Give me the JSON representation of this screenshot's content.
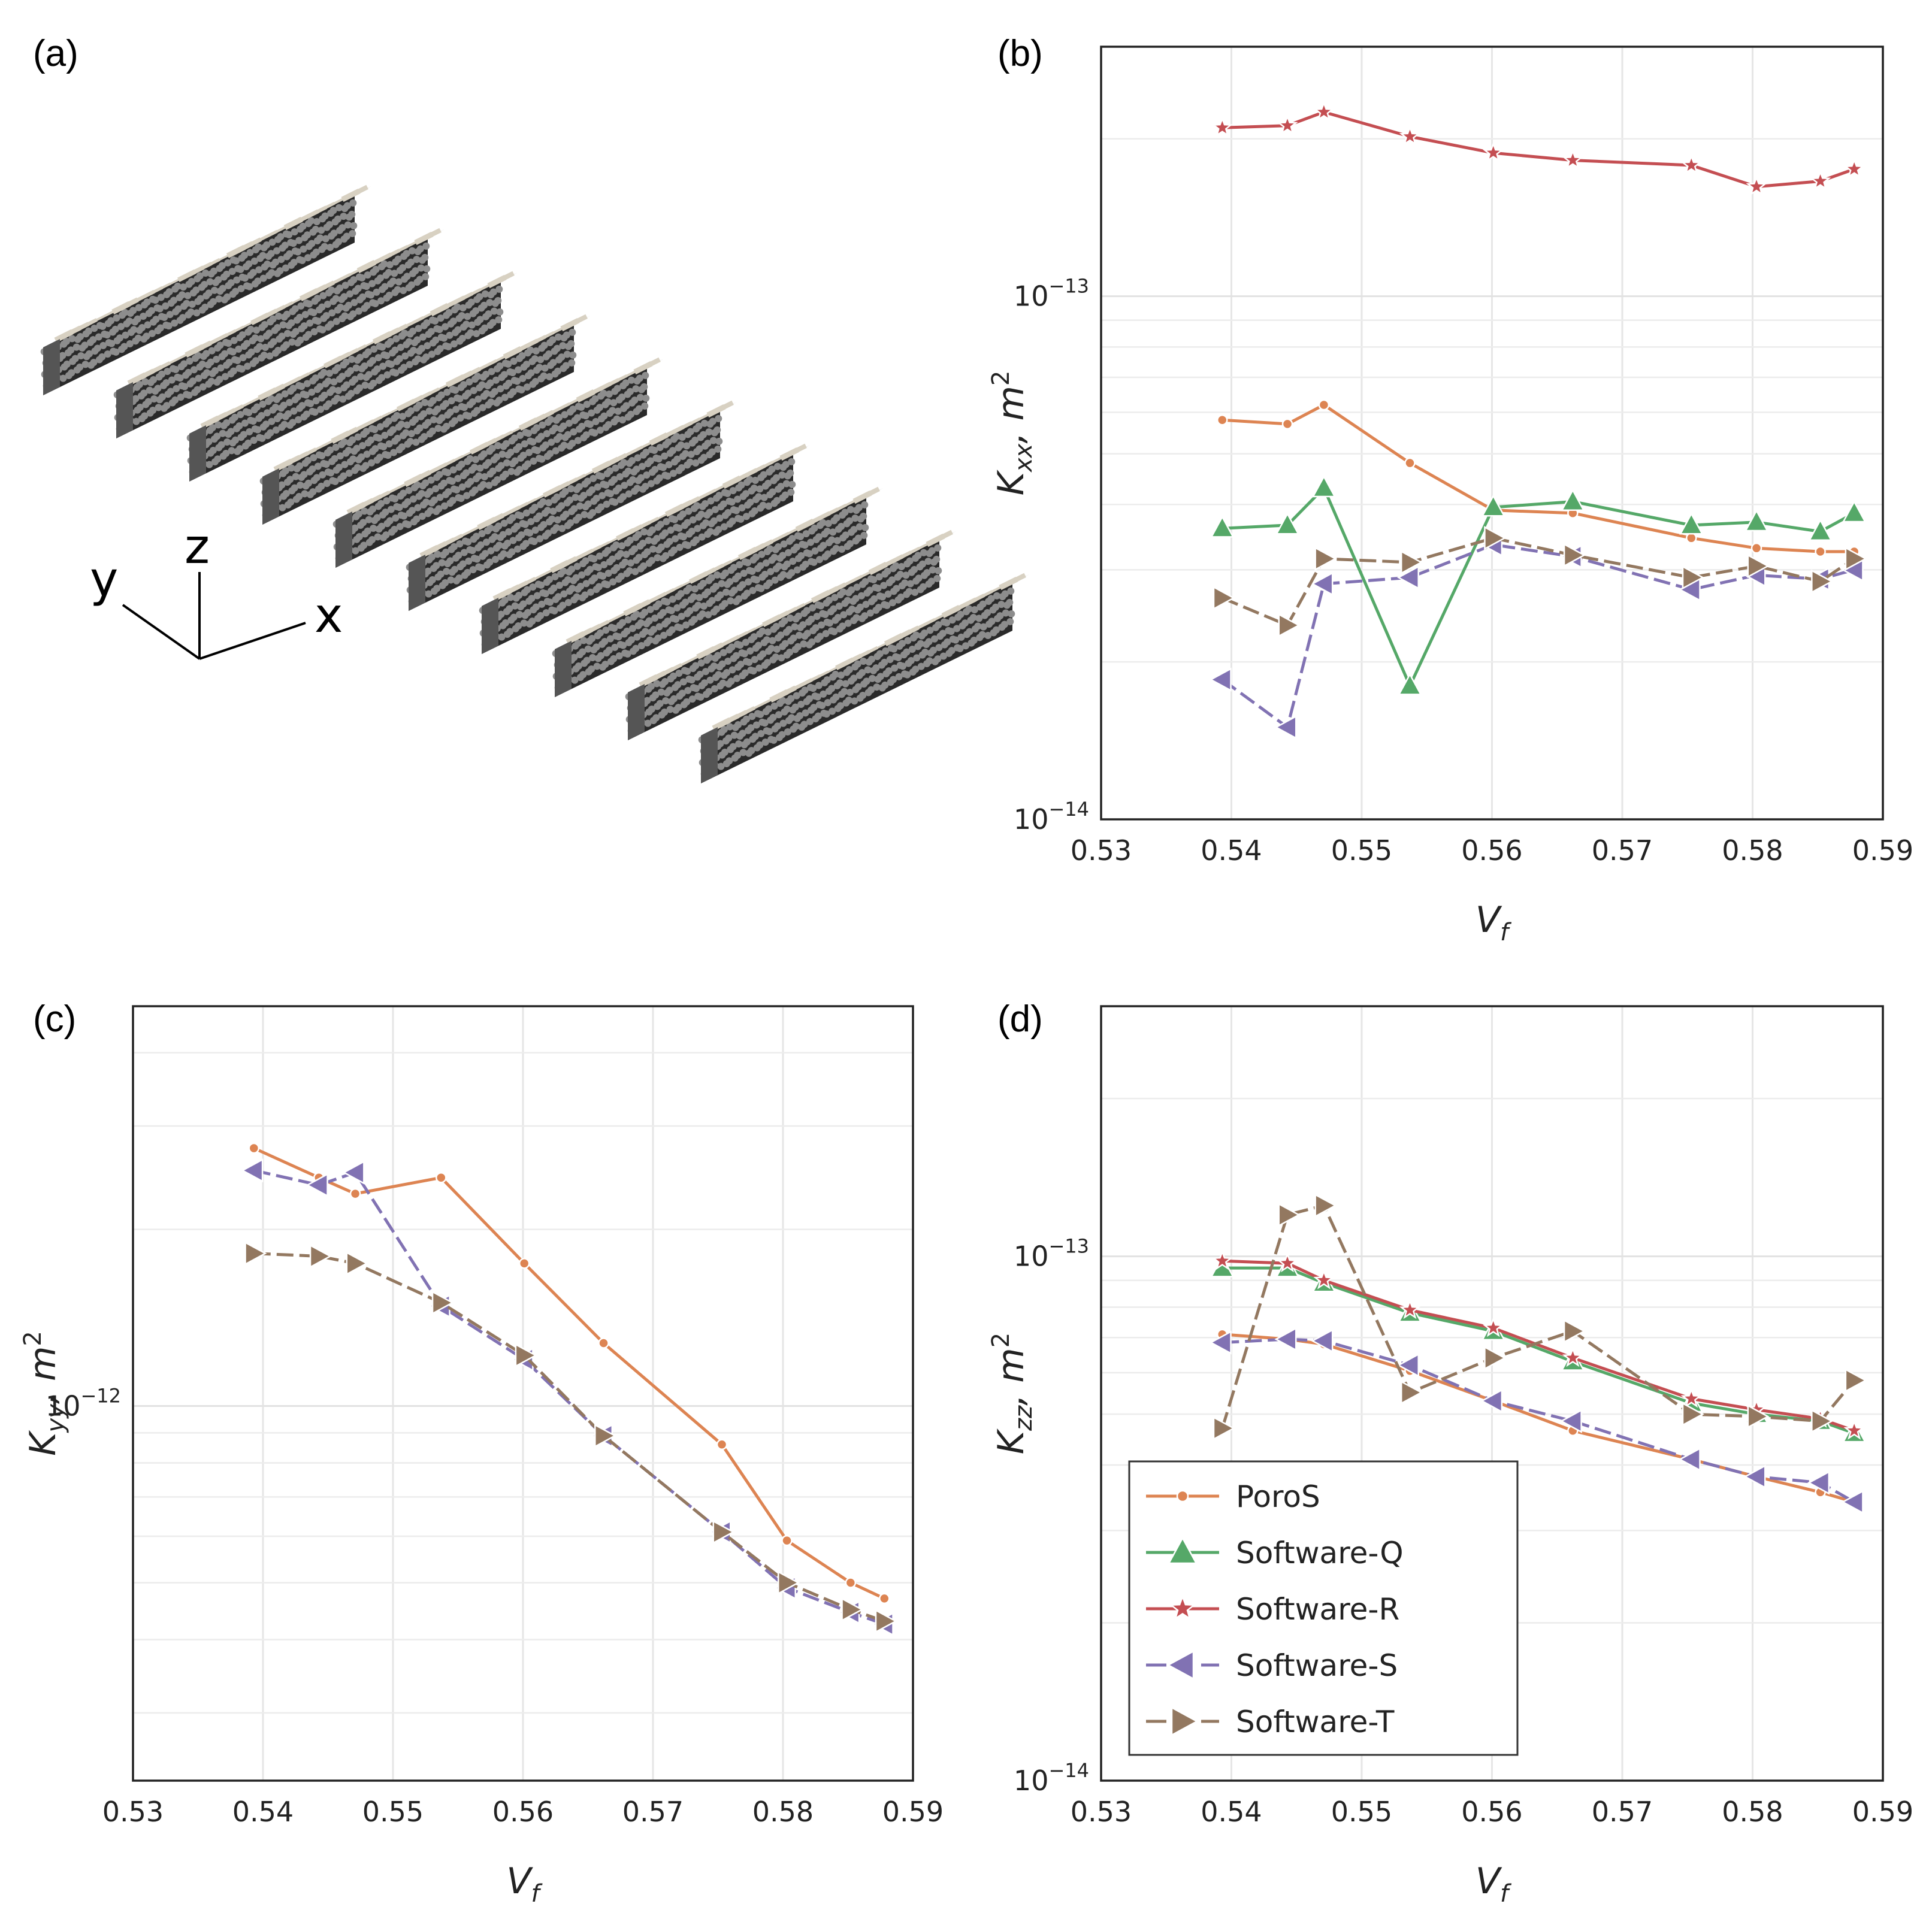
{
  "panels": {
    "a": "(a)",
    "b": "(b)",
    "c": "(c)",
    "d": "(d)"
  },
  "axes3d": {
    "x": "x",
    "y": "y",
    "z": "z"
  },
  "series_styles": [
    {
      "name": "PoroS",
      "color": "#dd8452",
      "marker": "circle",
      "dash": ""
    },
    {
      "name": "Software-Q",
      "color": "#55a868",
      "marker": "triangle-up",
      "dash": ""
    },
    {
      "name": "Software-R",
      "color": "#c44e52",
      "marker": "star",
      "dash": ""
    },
    {
      "name": "Software-S",
      "color": "#8172b3",
      "marker": "triangle-left",
      "dash": "28,10"
    },
    {
      "name": "Software-T",
      "color": "#937860",
      "marker": "triangle-right",
      "dash": "28,10"
    }
  ],
  "chart_data": [
    {
      "panel": "(b)",
      "type": "line",
      "xlabel": "V_f",
      "ylabel": "K_xx, m^2",
      "xlim": [
        0.53,
        0.59
      ],
      "ylim": [
        1e-14,
        3e-13
      ],
      "yscale": "log",
      "grid": true,
      "xticks": [
        "0.53",
        "0.54",
        "0.55",
        "0.56",
        "0.57",
        "0.58",
        "0.59"
      ],
      "yticks": [
        {
          "value": 1e-14,
          "label": "10^-14"
        },
        {
          "value": 1e-13,
          "label": "10^-13"
        }
      ],
      "x": [
        0.5393,
        0.5443,
        0.5471,
        0.5537,
        0.5601,
        0.5662,
        0.5753,
        0.5803,
        0.5852,
        0.5878
      ],
      "series": [
        {
          "name": "PoroS",
          "values": [
            5.8e-14,
            5.7e-14,
            6.2e-14,
            4.8e-14,
            3.9e-14,
            3.85e-14,
            3.45e-14,
            3.3e-14,
            3.25e-14,
            3.25e-14
          ]
        },
        {
          "name": "Software-Q",
          "values": [
            3.6e-14,
            3.65e-14,
            4.3e-14,
            1.8e-14,
            3.95e-14,
            4.05e-14,
            3.65e-14,
            3.7e-14,
            3.55e-14,
            3.85e-14
          ]
        },
        {
          "name": "Software-R",
          "values": [
            2.1e-13,
            2.12e-13,
            2.25e-13,
            2.02e-13,
            1.88e-13,
            1.82e-13,
            1.78e-13,
            1.62e-13,
            1.66e-13,
            1.75e-13
          ]
        },
        {
          "name": "Software-S",
          "values": [
            1.85e-14,
            1.5e-14,
            2.82e-14,
            2.9e-14,
            3.35e-14,
            3.18e-14,
            2.75e-14,
            2.93e-14,
            2.88e-14,
            3e-14
          ]
        },
        {
          "name": "Software-T",
          "values": [
            2.65e-14,
            2.35e-14,
            3.15e-14,
            3.1e-14,
            3.45e-14,
            3.2e-14,
            2.9e-14,
            3.05e-14,
            2.85e-14,
            3.15e-14
          ]
        }
      ]
    },
    {
      "panel": "(c)",
      "type": "line",
      "xlabel": "V_f",
      "ylabel": "K_yy, m^2",
      "xlim": [
        0.53,
        0.59
      ],
      "ylim": [
        2.3e-13,
        4.8e-12
      ],
      "yscale": "log",
      "grid": true,
      "xticks": [
        "0.53",
        "0.54",
        "0.55",
        "0.56",
        "0.57",
        "0.58",
        "0.59"
      ],
      "yticks": [
        {
          "value": 1e-12,
          "label": "10^-12"
        }
      ],
      "x": [
        0.5393,
        0.5443,
        0.5471,
        0.5537,
        0.5601,
        0.5662,
        0.5753,
        0.5803,
        0.5852,
        0.5878
      ],
      "series": [
        {
          "name": "PoroS",
          "values": [
            2.75e-12,
            2.45e-12,
            2.3e-12,
            2.45e-12,
            1.75e-12,
            1.28e-12,
            8.6e-13,
            5.9e-13,
            5e-13,
            4.7e-13
          ]
        },
        {
          "name": "Software-S",
          "values": [
            2.52e-12,
            2.38e-12,
            2.5e-12,
            1.48e-12,
            1.2e-12,
            8.9e-13,
            6.1e-13,
            4.9e-13,
            4.45e-13,
            4.25e-13
          ]
        },
        {
          "name": "Software-T",
          "values": [
            1.82e-12,
            1.8e-12,
            1.75e-12,
            1.5e-12,
            1.22e-12,
            8.9e-13,
            6.1e-13,
            5e-13,
            4.5e-13,
            4.3e-13
          ]
        }
      ]
    },
    {
      "panel": "(d)",
      "type": "line",
      "xlabel": "V_f",
      "ylabel": "K_zz, m^2",
      "xlim": [
        0.53,
        0.59
      ],
      "ylim": [
        1e-14,
        3e-13
      ],
      "yscale": "log",
      "grid": true,
      "legend": "lower-left",
      "xticks": [
        "0.53",
        "0.54",
        "0.55",
        "0.56",
        "0.57",
        "0.58",
        "0.59"
      ],
      "yticks": [
        {
          "value": 1e-14,
          "label": "10^-14"
        },
        {
          "value": 1e-13,
          "label": "10^-13"
        }
      ],
      "x": [
        0.5393,
        0.5443,
        0.5471,
        0.5537,
        0.5601,
        0.5662,
        0.5753,
        0.5803,
        0.5852,
        0.5878
      ],
      "series": [
        {
          "name": "PoroS",
          "values": [
            7.1e-14,
            6.95e-14,
            6.8e-14,
            6.05e-14,
            5.3e-14,
            4.65e-14,
            4.1e-14,
            3.8e-14,
            3.55e-14,
            3.4e-14
          ]
        },
        {
          "name": "Software-Q",
          "values": [
            9.5e-14,
            9.5e-14,
            8.9e-14,
            7.8e-14,
            7.2e-14,
            6.3e-14,
            5.25e-14,
            5e-14,
            4.85e-14,
            4.6e-14
          ]
        },
        {
          "name": "Software-R",
          "values": [
            9.8e-14,
            9.7e-14,
            9e-14,
            7.9e-14,
            7.3e-14,
            6.4e-14,
            5.35e-14,
            5.1e-14,
            4.9e-14,
            4.65e-14
          ]
        },
        {
          "name": "Software-S",
          "values": [
            6.85e-14,
            6.95e-14,
            6.9e-14,
            6.2e-14,
            5.3e-14,
            4.85e-14,
            4.1e-14,
            3.8e-14,
            3.7e-14,
            3.4e-14
          ]
        },
        {
          "name": "Software-T",
          "values": [
            4.7e-14,
            1.2e-13,
            1.25e-13,
            5.5e-14,
            6.4e-14,
            7.2e-14,
            5e-14,
            4.95e-14,
            4.85e-14,
            5.8e-14
          ]
        }
      ]
    }
  ]
}
